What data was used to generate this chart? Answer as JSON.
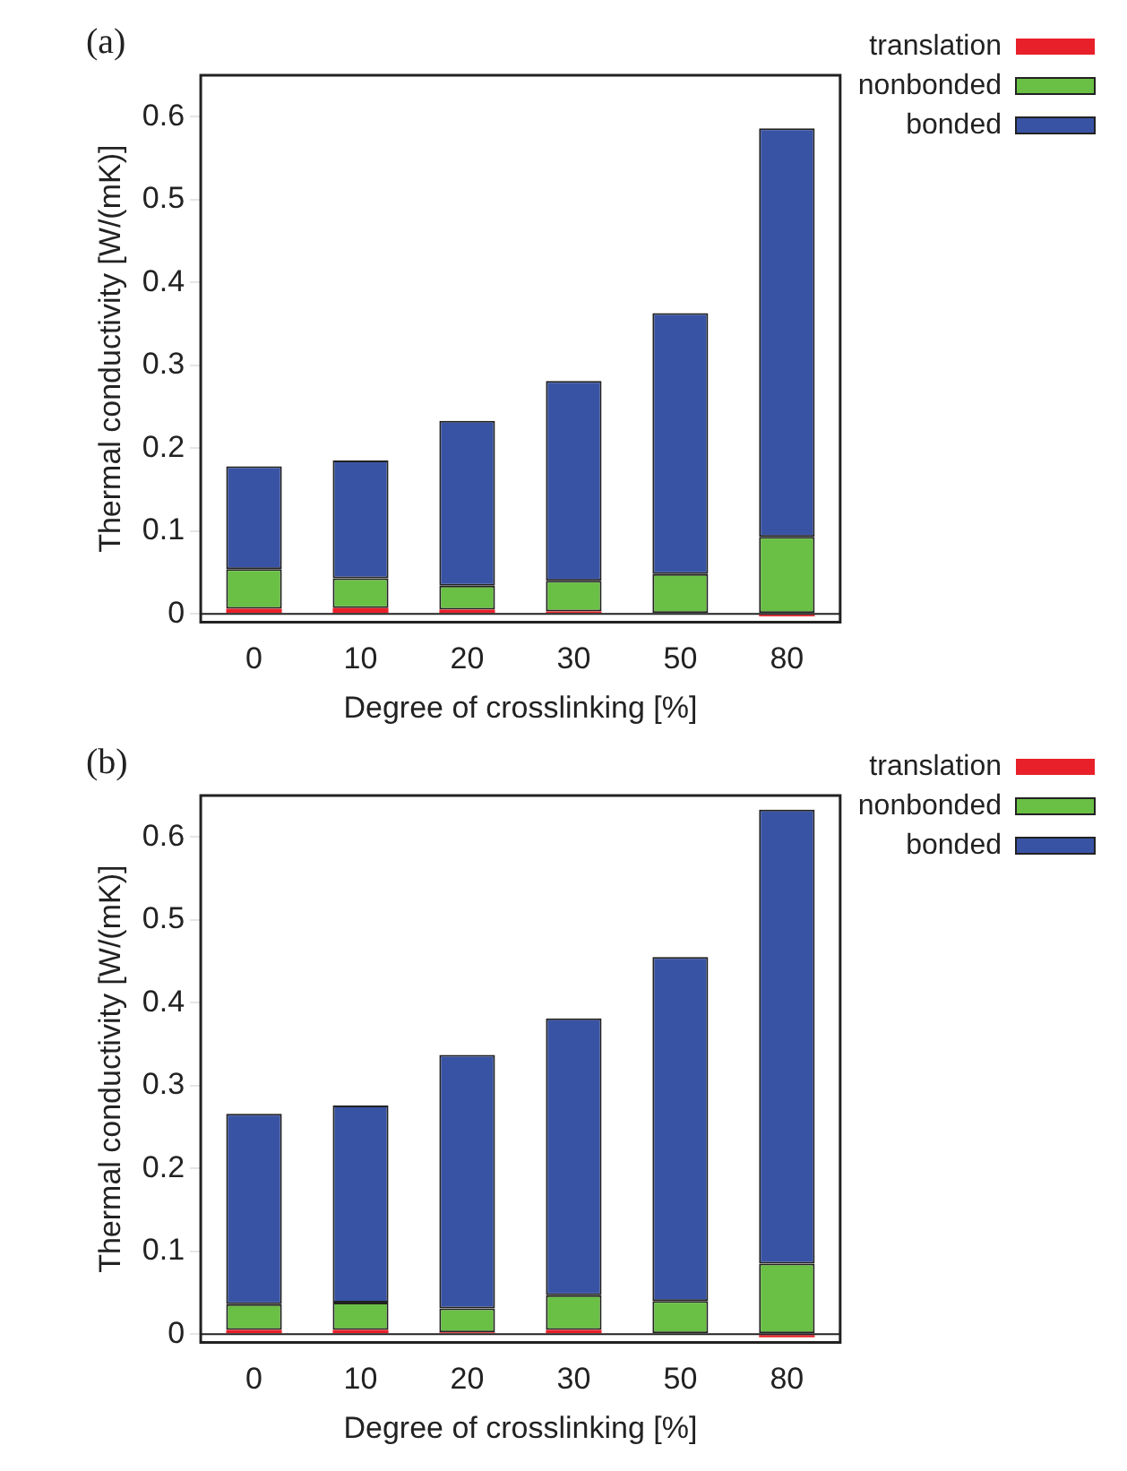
{
  "chart_data": [
    {
      "type": "bar",
      "title": "(a)",
      "xlabel": "Degree of crosslinking [%]",
      "ylabel": "Thermal conductivity [W/(mK)]",
      "categories": [
        "0",
        "10",
        "20",
        "30",
        "50",
        "80"
      ],
      "stacked": true,
      "legend": "top right",
      "ylim": [
        -0.01,
        0.65
      ],
      "yticks": [
        0,
        0.1,
        0.2,
        0.3,
        0.4,
        0.5,
        0.6
      ],
      "series": [
        {
          "name": "translation",
          "color": "#e8202a",
          "values": [
            0.006,
            0.007,
            0.005,
            0.003,
            null,
            -0.003
          ]
        },
        {
          "name": "nonbonded",
          "color": "#6abf45",
          "values": [
            0.048,
            0.036,
            0.029,
            0.037,
            0.048,
            0.093
          ]
        },
        {
          "name": "bonded",
          "color": "#3953a4",
          "values": [
            0.124,
            0.142,
            0.199,
            0.241,
            0.315,
            0.493
          ]
        }
      ]
    },
    {
      "type": "bar",
      "title": "(b)",
      "xlabel": "Degree of crosslinking [%]",
      "ylabel": "Thermal conductivity [W/(mK)]",
      "categories": [
        "0",
        "10",
        "20",
        "30",
        "50",
        "80"
      ],
      "stacked": true,
      "legend": "top right",
      "ylim": [
        -0.01,
        0.65
      ],
      "yticks": [
        0,
        0.1,
        0.2,
        0.3,
        0.4,
        0.5,
        0.6
      ],
      "series": [
        {
          "name": "translation",
          "color": "#e8202a",
          "values": [
            0.005,
            0.005,
            0.002,
            0.005,
            null,
            -0.004
          ]
        },
        {
          "name": "nonbonded",
          "color": "#6abf45",
          "values": [
            0.031,
            0.033,
            0.029,
            0.042,
            0.04,
            0.085
          ]
        },
        {
          "name": "bonded",
          "color": "#3953a4",
          "values": [
            0.23,
            0.238,
            0.306,
            0.334,
            0.415,
            0.548
          ]
        }
      ]
    }
  ]
}
